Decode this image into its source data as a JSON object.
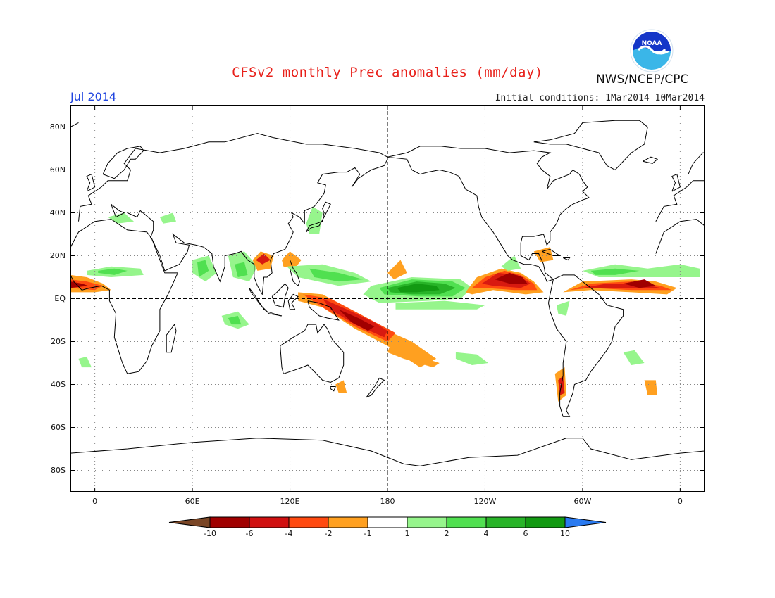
{
  "title": "CFSv2 monthly Prec anomalies (mm/day)",
  "month": "Jul 2014",
  "initial_conditions": "Initial conditions: 1Mar2014–10Mar2014",
  "agency": "NWS/NCEP/CPC",
  "logo_text": "NOAA",
  "latitude_labels": [
    "80N",
    "60N",
    "40N",
    "20N",
    "EQ",
    "20S",
    "40S",
    "60S",
    "80S"
  ],
  "latitude_values": [
    80,
    60,
    40,
    20,
    0,
    -20,
    -40,
    -60,
    -80
  ],
  "longitude_labels": [
    "0",
    "60E",
    "120E",
    "180",
    "120W",
    "60W",
    "0"
  ],
  "longitude_values": [
    0,
    60,
    120,
    180,
    240,
    300,
    360
  ],
  "colorbar": {
    "labels": [
      "-10",
      "-6",
      "-4",
      "-2",
      "-1",
      "1",
      "2",
      "4",
      "6",
      "10"
    ],
    "colors": [
      "#7a4626",
      "#a00000",
      "#d01010",
      "#ff4a10",
      "#ffa020",
      "#ffffff",
      "#96f58c",
      "#50e050",
      "#28b428",
      "#129a12",
      "#2a7af0"
    ]
  },
  "colors": {
    "title": "#e8201a",
    "month": "#2045e0",
    "neg_strong": "#a00000",
    "neg_mid": "#d81a10",
    "neg_light": "#ff4a10",
    "neg_faint": "#ffa020",
    "pos_faint": "#96f58c",
    "pos_light": "#50e050",
    "pos_mid": "#28b428",
    "pos_strong": "#129a12"
  }
}
